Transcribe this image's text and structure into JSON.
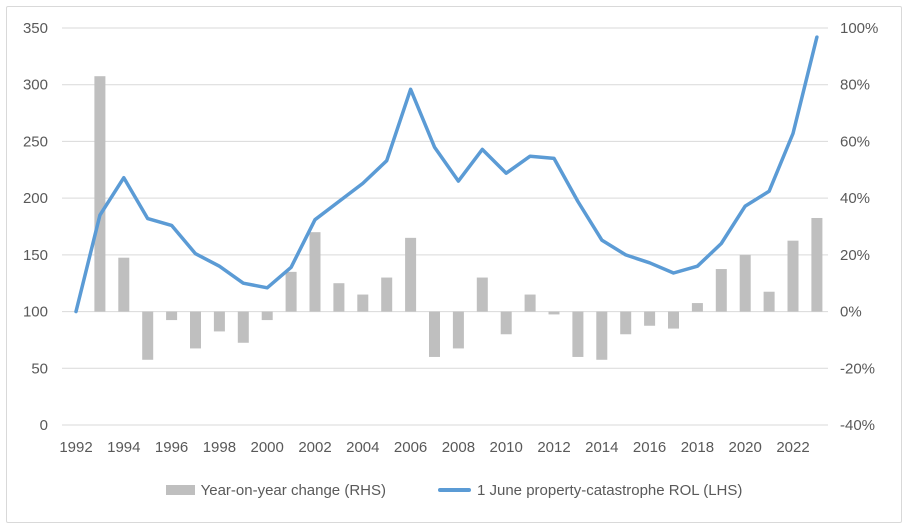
{
  "frame": {
    "background": "#FFFFFF",
    "border_color": "#D9D9D9"
  },
  "legend": {
    "items": [
      {
        "label": "Year-on-year change (RHS)",
        "swatch": "gray-bar-swatch",
        "color": "#BFBFBF"
      },
      {
        "label": "1 June property-catastrophe ROL (LHS)",
        "swatch": "blue-line-swatch",
        "color": "#5B9BD5"
      }
    ]
  },
  "chart_data": {
    "type": "combo",
    "title": "",
    "categories": [
      1992,
      1993,
      1994,
      1995,
      1996,
      1997,
      1998,
      1999,
      2000,
      2001,
      2002,
      2003,
      2004,
      2005,
      2006,
      2007,
      2008,
      2009,
      2010,
      2011,
      2012,
      2013,
      2014,
      2015,
      2016,
      2017,
      2018,
      2019,
      2020,
      2021,
      2022,
      2023
    ],
    "series": [
      {
        "name": "Year-on-year change (RHS)",
        "type": "bar",
        "axis": "right",
        "unit": "%",
        "color": "#BFBFBF",
        "values": [
          null,
          83,
          19,
          -17,
          -3,
          -13,
          -7,
          -11,
          -3,
          14,
          28,
          10,
          6,
          12,
          26,
          -16,
          -13,
          12,
          -8,
          6,
          -1,
          -16,
          -17,
          -8,
          -5,
          -6,
          3,
          15,
          20,
          7,
          25,
          33
        ]
      },
      {
        "name": "1 June property-catastrophe ROL (LHS)",
        "type": "line",
        "axis": "left",
        "unit": "index",
        "color": "#5B9BD5",
        "values": [
          100,
          185,
          218,
          182,
          176,
          151,
          140,
          125,
          121,
          139,
          181,
          197,
          213,
          233,
          296,
          245,
          215,
          243,
          222,
          237,
          235,
          197,
          163,
          150,
          143,
          134,
          140,
          160,
          193,
          206,
          257,
          342
        ]
      }
    ],
    "left_axis": {
      "min": 0,
      "max": 350,
      "step": 50,
      "tick_labels": [
        "0",
        "50",
        "100",
        "150",
        "200",
        "250",
        "300",
        "350"
      ]
    },
    "right_axis": {
      "min": -40,
      "max": 100,
      "step": 20,
      "tick_labels": [
        "-40%",
        "-20%",
        "0%",
        "20%",
        "40%",
        "60%",
        "80%",
        "100%"
      ]
    },
    "x_axis": {
      "tick_labels": [
        "1992",
        "1994",
        "1996",
        "1998",
        "2000",
        "2002",
        "2004",
        "2006",
        "2008",
        "2010",
        "2012",
        "2014",
        "2016",
        "2018",
        "2020",
        "2022"
      ],
      "label_every": 2
    },
    "grid": true,
    "legend_position": "bottom",
    "text_color": "#595959",
    "gridline_color": "#D9D9D9"
  }
}
